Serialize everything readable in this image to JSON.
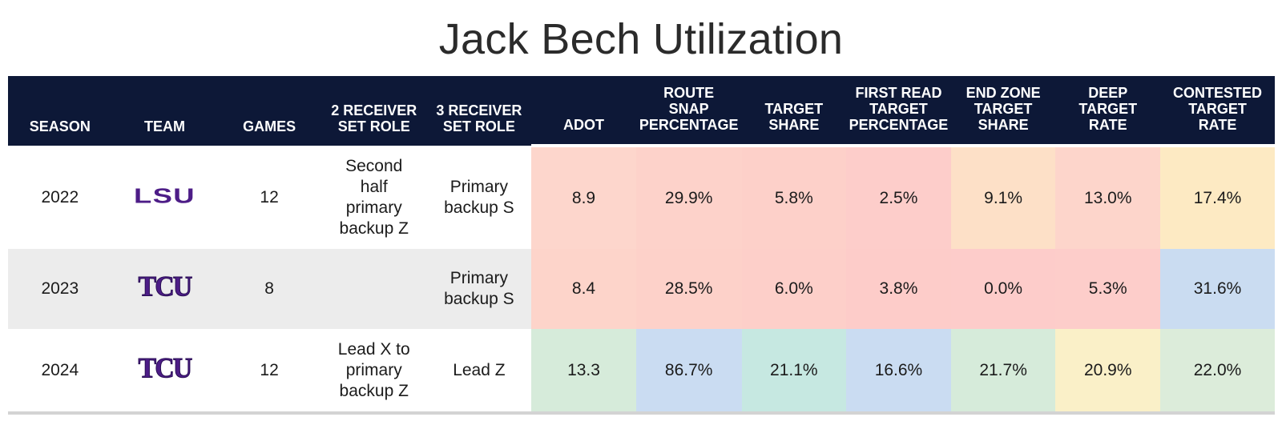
{
  "title": "Jack Bech Utilization",
  "headers": {
    "season": "SEASON",
    "team": "TEAM",
    "games": "GAMES",
    "two_receiver": [
      "2 RECEIVER",
      "SET ROLE"
    ],
    "three_receiver": [
      "3 RECEIVER",
      "SET ROLE"
    ],
    "adot": "ADOT",
    "route_snap": [
      "ROUTE",
      "SNAP",
      "PERCENTAGE"
    ],
    "target_share": [
      "TARGET",
      "SHARE"
    ],
    "first_read": [
      "FIRST READ",
      "TARGET",
      "PERCENTAGE"
    ],
    "end_zone": [
      "END ZONE",
      "TARGET",
      "SHARE"
    ],
    "deep_target": [
      "DEEP",
      "TARGET",
      "RATE"
    ],
    "contested": [
      "CONTESTED",
      "TARGET",
      "RATE"
    ]
  },
  "rows": [
    {
      "season": "2022",
      "team_logo": "LSU",
      "team_logo_icon": "lsu-logo-icon",
      "games": "12",
      "two_receiver_role": [
        "Second",
        "half",
        "primary",
        "backup Z"
      ],
      "three_receiver_role": [
        "Primary",
        "backup S"
      ],
      "adot": "8.9",
      "route_snap": "29.9%",
      "target_share": "5.8%",
      "first_read": "2.5%",
      "end_zone": "9.1%",
      "deep_target": "13.0%",
      "contested": "17.4%",
      "colors": [
        "#fdd6cc",
        "#fdd2ca",
        "#fdd0c9",
        "#fdcdca",
        "#fde0c7",
        "#fdd5cb",
        "#fdeac3"
      ]
    },
    {
      "season": "2023",
      "team_logo": "TCU",
      "team_logo_icon": "tcu-logo-icon",
      "games": "8",
      "two_receiver_role": [],
      "three_receiver_role": [
        "Primary",
        "backup S"
      ],
      "adot": "8.4",
      "route_snap": "28.5%",
      "target_share": "6.0%",
      "first_read": "3.8%",
      "end_zone": "0.0%",
      "deep_target": "5.3%",
      "contested": "31.6%",
      "colors": [
        "#fdd4ca",
        "#fdd1c9",
        "#fdcfc9",
        "#fdccc9",
        "#fdccca",
        "#fdcdca",
        "#cadcf1"
      ]
    },
    {
      "season": "2024",
      "team_logo": "TCU",
      "team_logo_icon": "tcu-logo-icon",
      "games": "12",
      "two_receiver_role": [
        "Lead X to",
        "primary",
        "backup Z"
      ],
      "three_receiver_role": [
        "Lead Z"
      ],
      "adot": "13.3",
      "route_snap": "86.7%",
      "target_share": "21.1%",
      "first_read": "16.6%",
      "end_zone": "21.7%",
      "deep_target": "20.9%",
      "contested": "22.0%",
      "colors": [
        "#d6ebda",
        "#cadcf2",
        "#c6e8e1",
        "#cadcf2",
        "#d6ebda",
        "#faf0c8",
        "#dcecda"
      ]
    }
  ]
}
